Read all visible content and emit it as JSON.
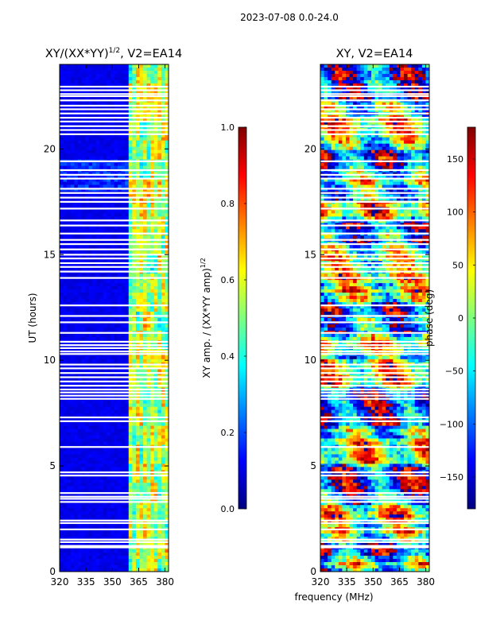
{
  "figure": {
    "suptitle": "2023-07-08 0.0-24.0",
    "shared_xlabel": "frequency (MHz)"
  },
  "colormap": {
    "name": "jet",
    "stops": [
      "#00007f",
      "#0000ff",
      "#007fff",
      "#00ffff",
      "#7fff7f",
      "#ffff00",
      "#ff7f00",
      "#ff0000",
      "#7f0000"
    ]
  },
  "chart_data": [
    {
      "type": "heatmap",
      "id": "amp",
      "title": "XY/(XX*YY)",
      "title_exponent": "1/2",
      "title_suffix": ", V2=EA14",
      "xlabel": "",
      "ylabel": "UT (hours)",
      "xlim": [
        320,
        382
      ],
      "ylim": [
        0,
        24
      ],
      "xticks": [
        320,
        335,
        350,
        365,
        380
      ],
      "yticks": [
        0,
        5,
        10,
        15,
        20
      ],
      "active_x_range": [
        360,
        381.5
      ],
      "colorbar": {
        "label": "XY amp. / (XX*YY amp)",
        "label_exponent": "1/2",
        "range": [
          0.0,
          1.0
        ],
        "ticks": [
          "0.0",
          "0.2",
          "0.4",
          "0.6",
          "0.8",
          "1.0"
        ]
      }
    },
    {
      "type": "heatmap",
      "id": "phase",
      "title": "XY, V2=EA14",
      "xlabel": "frequency (MHz)",
      "ylabel": "",
      "xlim": [
        320,
        382
      ],
      "ylim": [
        0,
        24
      ],
      "xticks": [
        320,
        335,
        350,
        365,
        380
      ],
      "yticks": [
        0,
        5,
        10,
        15,
        20
      ],
      "colorbar": {
        "label": "phase (deg)",
        "range": [
          -180,
          180
        ],
        "ticks": [
          "−150",
          "−100",
          "−50",
          "0",
          "50",
          "100",
          "150"
        ]
      }
    }
  ],
  "flagged_hours": [
    1.15,
    1.22,
    1.4,
    1.52,
    2.0,
    2.3,
    2.42,
    3.3,
    3.45,
    3.55,
    3.72,
    4.55,
    4.7,
    5.9,
    7.12,
    7.3,
    8.18,
    8.33,
    8.48,
    8.62,
    8.8,
    9.0,
    9.2,
    9.4,
    9.62,
    9.8,
    10.3,
    10.42,
    10.58,
    10.72,
    10.88,
    11.3,
    11.8,
    12.1,
    12.6,
    13.9,
    14.2,
    14.42,
    14.6,
    14.82,
    15.0,
    15.25,
    15.5,
    15.7,
    16.0,
    16.38,
    16.62,
    17.18,
    17.5,
    17.7,
    17.92,
    18.12,
    18.6,
    18.78,
    19.0,
    19.42,
    20.7,
    20.9,
    21.08,
    21.3,
    21.48,
    21.68,
    21.88,
    22.05,
    22.3,
    22.5,
    22.6,
    22.78,
    22.95
  ]
}
